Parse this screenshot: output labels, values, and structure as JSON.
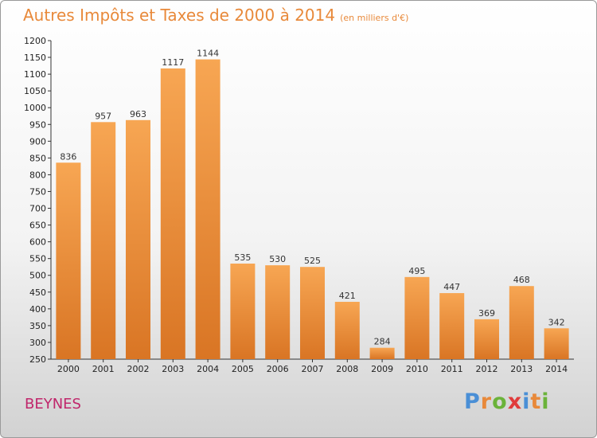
{
  "title": "Autres Impôts et Taxes de 2000 à 2014",
  "subtitle": "(en milliers d'€)",
  "commune": "BEYNES",
  "logo": {
    "text": "Proxiti",
    "letter_colors": [
      "#4a8fd6",
      "#e8893a",
      "#6bb33a",
      "#e03c3c",
      "#4a8fd6",
      "#e8893a",
      "#6bb33a"
    ]
  },
  "colors": {
    "bar_top": "#f7a653",
    "bar_bottom": "#d97524",
    "title": "#e8893a",
    "commune": "#c0266b"
  },
  "chart_data": {
    "type": "bar",
    "categories": [
      "2000",
      "2001",
      "2002",
      "2003",
      "2004",
      "2005",
      "2006",
      "2007",
      "2008",
      "2009",
      "2010",
      "2011",
      "2012",
      "2013",
      "2014"
    ],
    "values": [
      836,
      957,
      963,
      1117,
      1144,
      535,
      530,
      525,
      421,
      284,
      495,
      447,
      369,
      468,
      342
    ],
    "ylim": [
      250,
      1200
    ],
    "yticks": [
      250,
      300,
      350,
      400,
      450,
      500,
      550,
      600,
      650,
      700,
      750,
      800,
      850,
      900,
      950,
      1000,
      1050,
      1100,
      1150,
      1200
    ],
    "grid": false
  }
}
